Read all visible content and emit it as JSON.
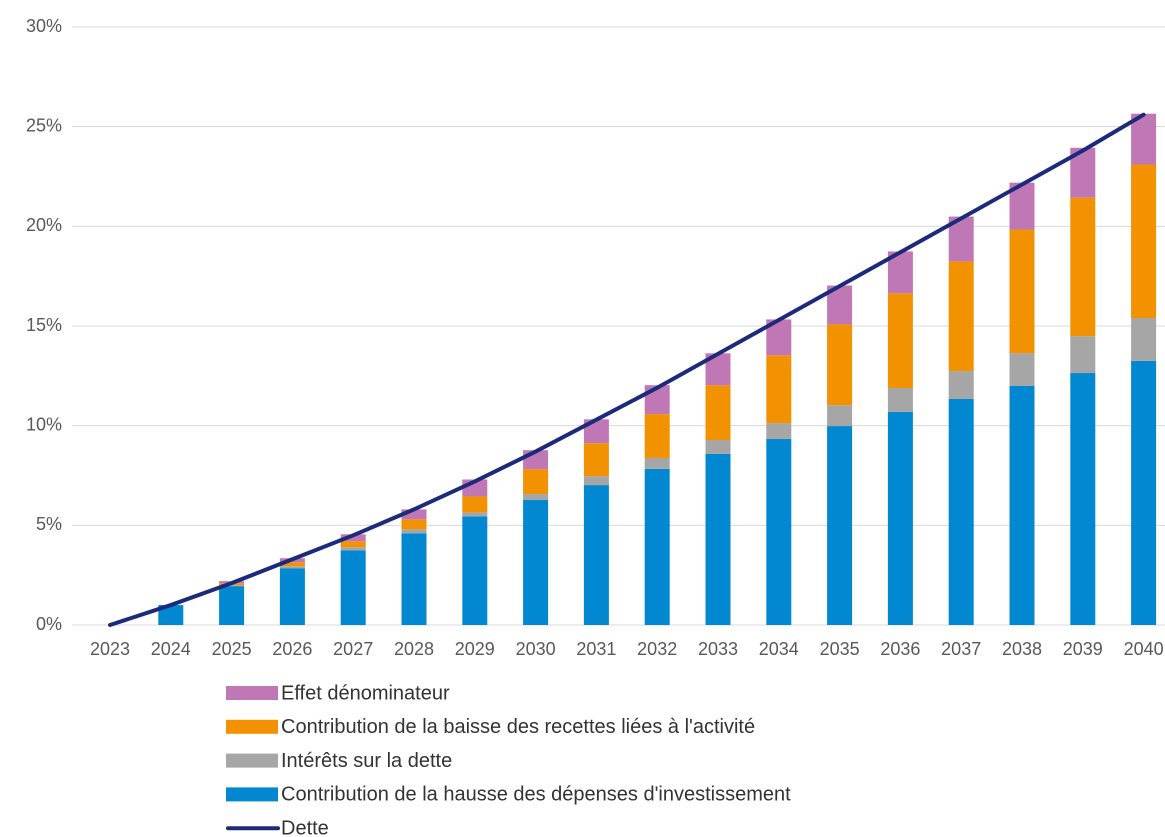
{
  "chart_data": {
    "type": "bar",
    "categories": [
      "2023",
      "2024",
      "2025",
      "2026",
      "2027",
      "2028",
      "2029",
      "2030",
      "2031",
      "2032",
      "2033",
      "2034",
      "2035",
      "2036",
      "2037",
      "2038",
      "2039",
      "2040"
    ],
    "series": [
      {
        "name": "Contribution de la hausse des dépenses d'investissement",
        "color": "#0288d1",
        "values": [
          0,
          1.0,
          1.95,
          2.85,
          3.75,
          4.6,
          5.45,
          6.27,
          7.02,
          7.83,
          8.58,
          9.33,
          9.98,
          10.69,
          11.34,
          11.99,
          12.64,
          13.25
        ]
      },
      {
        "name": "Intérêts sur la dette",
        "color": "#a6a6a6",
        "values": [
          0,
          0,
          0.05,
          0.1,
          0.15,
          0.2,
          0.2,
          0.3,
          0.45,
          0.55,
          0.7,
          0.8,
          1.05,
          1.2,
          1.4,
          1.65,
          1.85,
          2.15
        ]
      },
      {
        "name": "Contribution de la baisse des recettes liées à l'activité",
        "color": "#f39200",
        "values": [
          0,
          0,
          0.1,
          0.2,
          0.3,
          0.5,
          0.8,
          1.25,
          1.65,
          2.2,
          2.75,
          3.4,
          4.05,
          4.75,
          5.5,
          6.2,
          6.95,
          7.7
        ]
      },
      {
        "name": "Effet dénominateur",
        "color": "#c077b6",
        "values": [
          0,
          0,
          0.1,
          0.2,
          0.35,
          0.5,
          0.85,
          0.95,
          1.2,
          1.45,
          1.6,
          1.8,
          1.95,
          2.1,
          2.25,
          2.35,
          2.5,
          2.55
        ]
      },
      {
        "name": "Dette",
        "type": "line",
        "color": "#1b2a7a",
        "values": [
          0,
          1.0,
          2.1,
          3.3,
          4.5,
          5.8,
          7.2,
          8.7,
          10.3,
          11.9,
          13.6,
          15.3,
          17.0,
          18.7,
          20.4,
          22.1,
          23.8,
          25.6
        ]
      }
    ],
    "stacked": true,
    "ylim": [
      0,
      30
    ],
    "yticks": [
      {
        "value": 0,
        "label": "0%"
      },
      {
        "value": 5,
        "label": "5%"
      },
      {
        "value": 10,
        "label": "10%"
      },
      {
        "value": 15,
        "label": "15%"
      },
      {
        "value": 20,
        "label": "20%"
      },
      {
        "value": 25,
        "label": "25%"
      },
      {
        "value": 30,
        "label": "30%"
      }
    ],
    "grid": true,
    "legend": "bottom"
  }
}
